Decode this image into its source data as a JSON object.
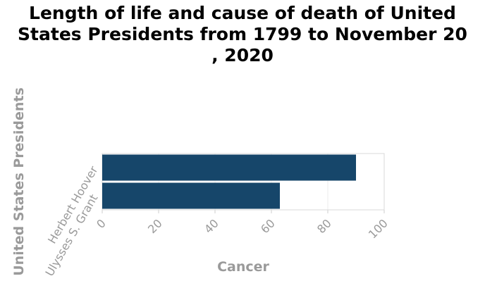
{
  "chart_data": {
    "type": "bar",
    "orientation": "horizontal",
    "title_lines": [
      "Length of life and cause of death of United",
      "States Presidents from 1799 to November 20",
      ", 2020"
    ],
    "xlabel": "Cancer",
    "ylabel": "United States Presidents",
    "categories": [
      "Herbert Hoover",
      "Ulysses S. Grant"
    ],
    "values": [
      90,
      63
    ],
    "xlim": [
      0,
      100
    ],
    "xticks": [
      "0",
      "20",
      "40",
      "60",
      "80",
      "100"
    ],
    "grid": true,
    "legend": "none",
    "bar_color": "#16466a",
    "label_color": "#9a9a9a"
  }
}
